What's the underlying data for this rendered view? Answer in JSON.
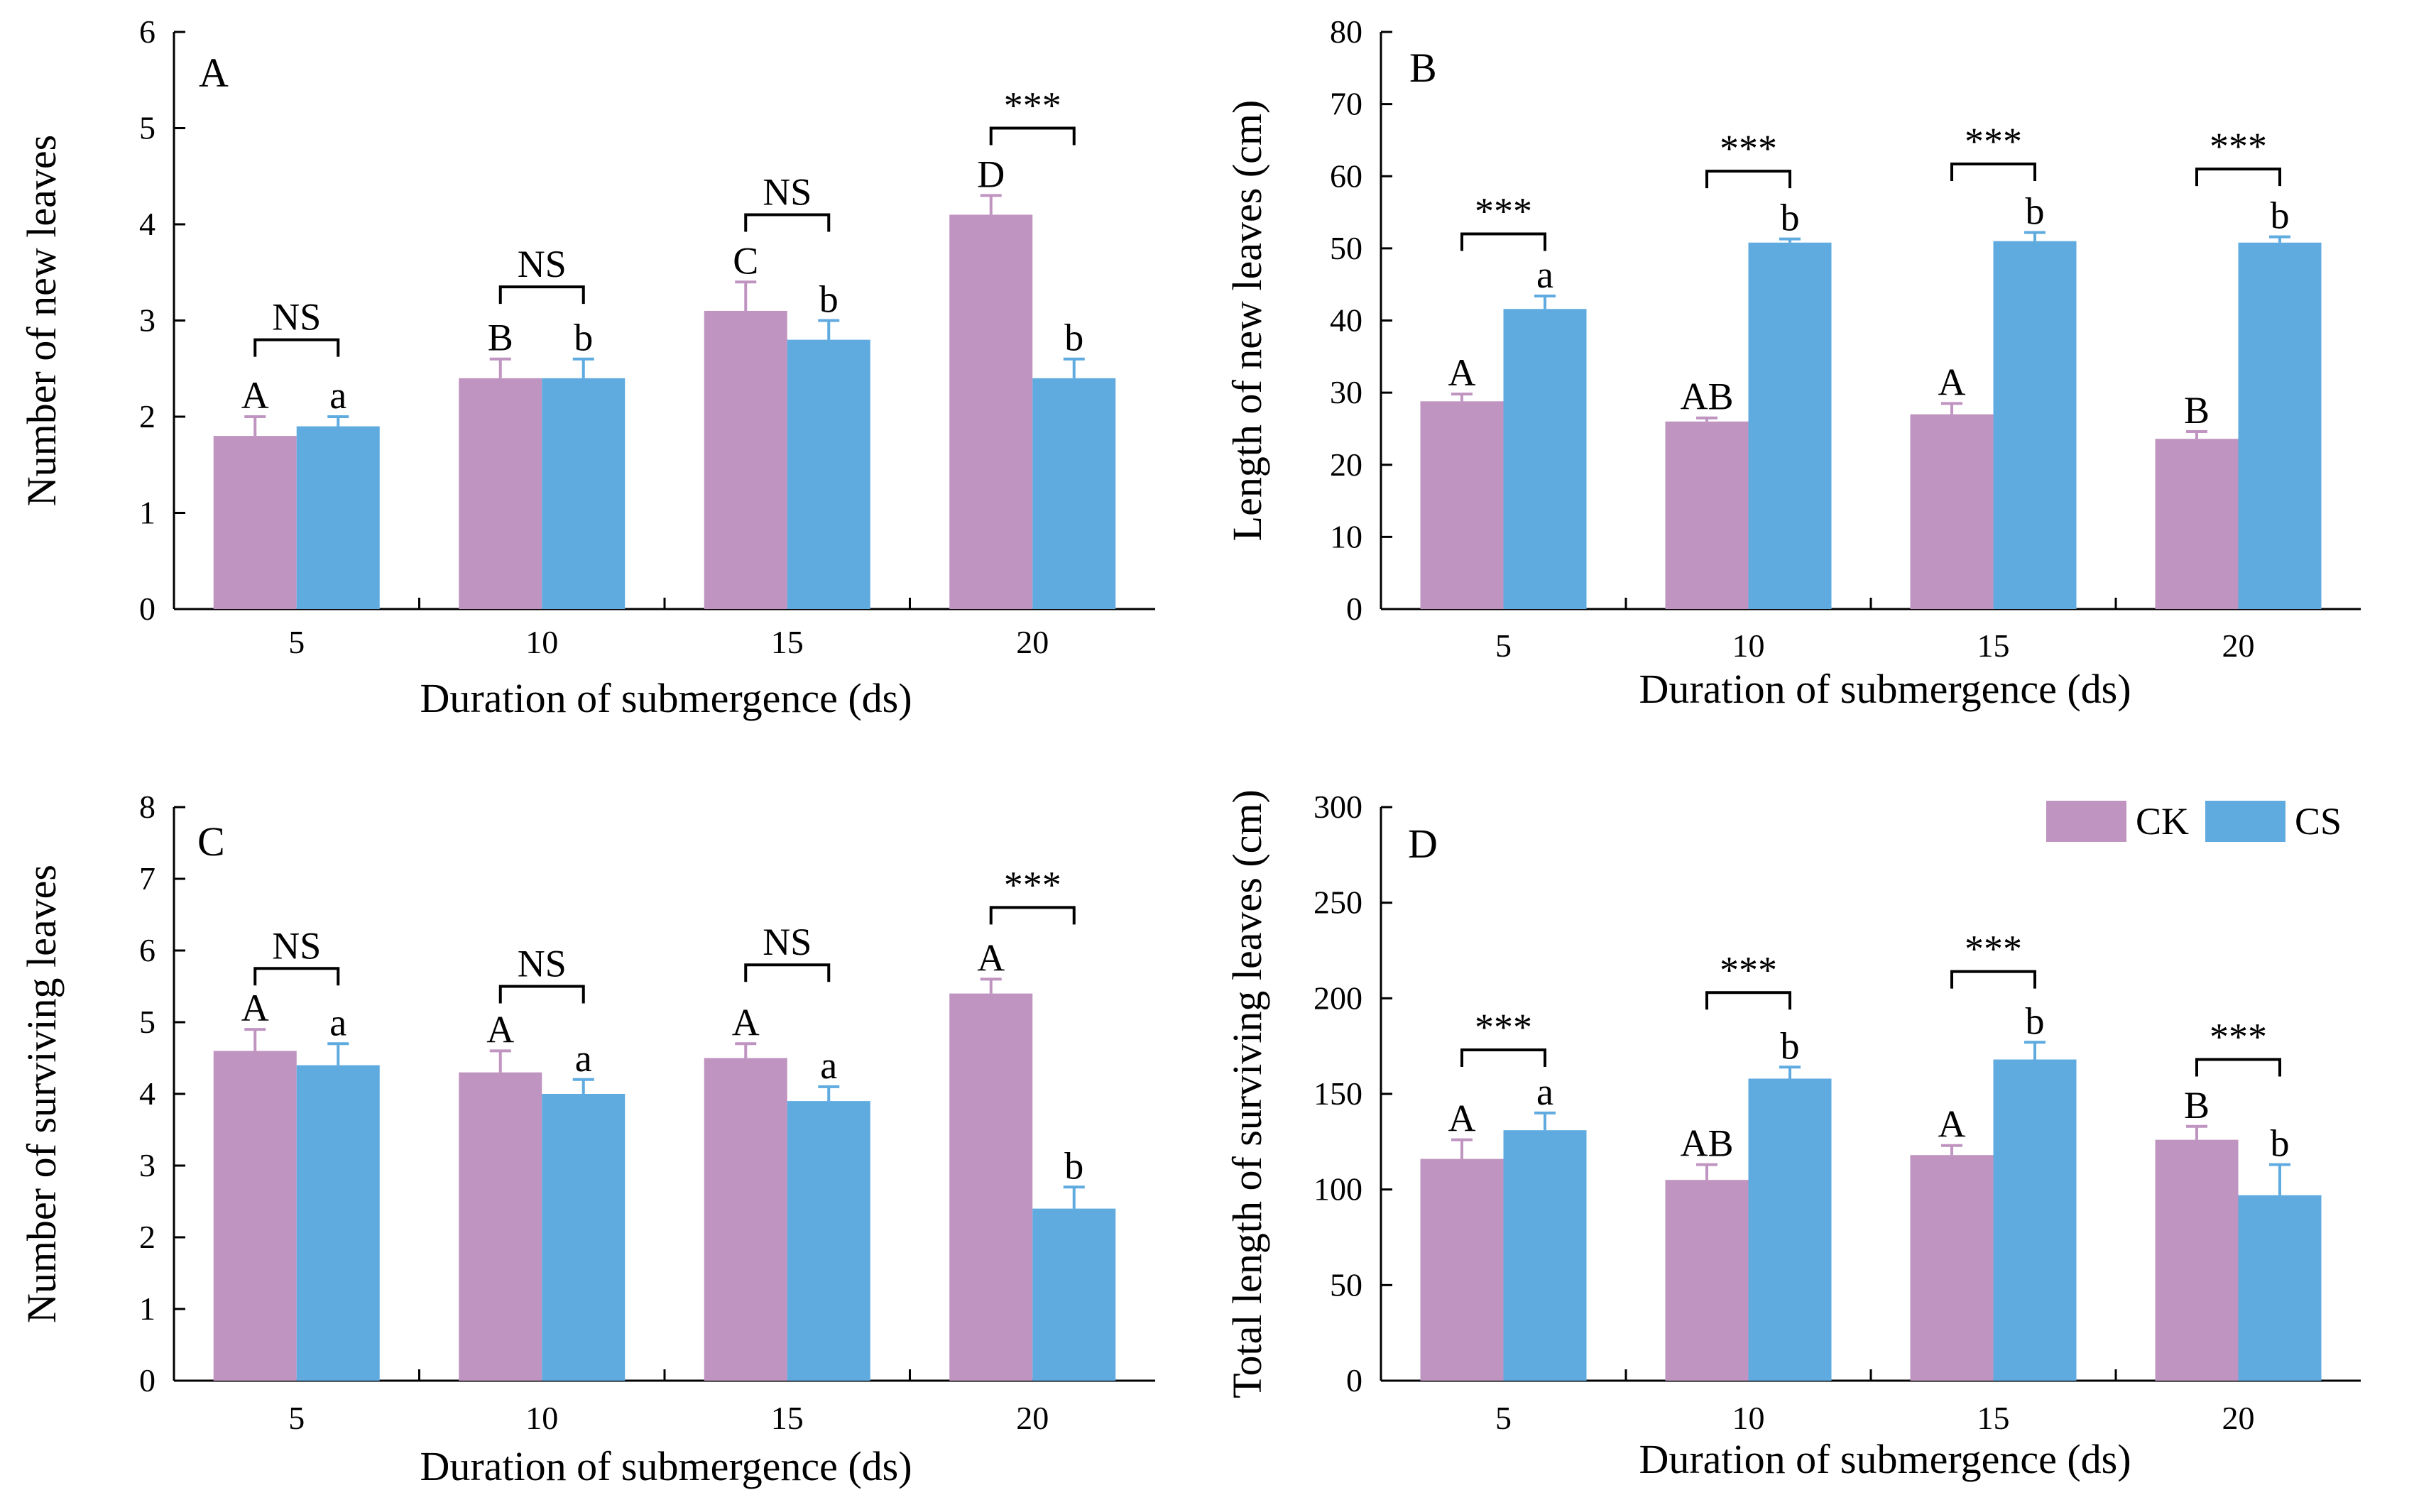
{
  "legend": [
    {
      "name": "CK",
      "color": "#bf94c0"
    },
    {
      "name": "CS",
      "color": "#5fabe0"
    }
  ],
  "chart_data": [
    {
      "type": "bar",
      "panel": "A",
      "categories": [
        "5",
        "10",
        "15",
        "20"
      ],
      "xlabel": "Duration of submergence (ds)",
      "ylabel": "Number of new leaves",
      "ylim": [
        0,
        6
      ],
      "yticks": [
        "0",
        "1",
        "2",
        "3",
        "4",
        "5",
        "6"
      ],
      "series": [
        {
          "name": "CK",
          "values": [
            1.8,
            2.4,
            3.1,
            4.1
          ],
          "errors": [
            0.2,
            0.2,
            0.3,
            0.2
          ],
          "letters": [
            "A",
            "B",
            "C",
            "D"
          ]
        },
        {
          "name": "CS",
          "values": [
            1.9,
            2.4,
            2.8,
            2.4
          ],
          "errors": [
            0.1,
            0.2,
            0.2,
            0.2
          ],
          "letters": [
            "a",
            "b",
            "b",
            "b"
          ]
        }
      ],
      "significance": [
        "NS",
        "NS",
        "NS",
        "***"
      ],
      "sig_levels": [
        2.8,
        3.35,
        4.1,
        5.0
      ]
    },
    {
      "type": "bar",
      "panel": "B",
      "categories": [
        "5",
        "10",
        "15",
        "20"
      ],
      "xlabel": "Duration of submergence (ds)",
      "ylabel": "Length of  new leaves (cm)",
      "ylim": [
        0,
        80
      ],
      "yticks": [
        "0",
        "10",
        "20",
        "30",
        "40",
        "50",
        "60",
        "70",
        "80"
      ],
      "series": [
        {
          "name": "CK",
          "values": [
            28.8,
            26.0,
            27.0,
            23.6
          ],
          "errors": [
            1.0,
            0.5,
            1.5,
            1.0
          ],
          "letters": [
            "A",
            "AB",
            "A",
            "B"
          ]
        },
        {
          "name": "CS",
          "values": [
            41.6,
            50.8,
            51.0,
            50.8
          ],
          "errors": [
            1.8,
            0.5,
            1.2,
            0.8
          ],
          "letters": [
            "a",
            "b",
            "b",
            "b"
          ]
        }
      ],
      "significance": [
        "***",
        "***",
        "***",
        "***"
      ],
      "sig_levels": [
        52.0,
        60.7,
        61.7,
        61.0
      ]
    },
    {
      "type": "bar",
      "panel": "C",
      "categories": [
        "5",
        "10",
        "15",
        "20"
      ],
      "xlabel": "Duration of submergence (ds)",
      "ylabel": "Number of surviving leaves",
      "ylim": [
        0,
        8
      ],
      "yticks": [
        "0",
        "1",
        "2",
        "3",
        "4",
        "5",
        "6",
        "7",
        "8"
      ],
      "series": [
        {
          "name": "CK",
          "values": [
            4.6,
            4.3,
            4.5,
            5.4
          ],
          "errors": [
            0.3,
            0.3,
            0.2,
            0.2
          ],
          "letters": [
            "A",
            "A",
            "A",
            "A"
          ]
        },
        {
          "name": "CS",
          "values": [
            4.4,
            4.0,
            3.9,
            2.4
          ],
          "errors": [
            0.3,
            0.2,
            0.2,
            0.3
          ],
          "letters": [
            "a",
            "a",
            "a",
            "b"
          ]
        }
      ],
      "significance": [
        "NS",
        "NS",
        "NS",
        "***"
      ],
      "sig_levels": [
        5.75,
        5.5,
        5.8,
        6.6
      ]
    },
    {
      "type": "bar",
      "panel": "D",
      "categories": [
        "5",
        "10",
        "15",
        "20"
      ],
      "xlabel": "Duration of submergence (ds)",
      "ylabel": "Total length of  surviving leaves (cm)",
      "ylim": [
        0,
        300
      ],
      "yticks": [
        "0",
        "50",
        "100",
        "150",
        "200",
        "250",
        "300"
      ],
      "series": [
        {
          "name": "CK",
          "values": [
            116,
            105,
            118,
            126
          ],
          "errors": [
            10,
            8,
            5,
            7
          ],
          "letters": [
            "A",
            "AB",
            "A",
            "B"
          ]
        },
        {
          "name": "CS",
          "values": [
            131,
            158,
            168,
            97
          ],
          "errors": [
            9,
            6,
            9,
            16
          ],
          "letters": [
            "a",
            "b",
            "b",
            "b"
          ]
        }
      ],
      "significance": [
        "***",
        "***",
        "***",
        "***"
      ],
      "sig_levels": [
        173,
        203,
        214,
        168
      ]
    }
  ]
}
